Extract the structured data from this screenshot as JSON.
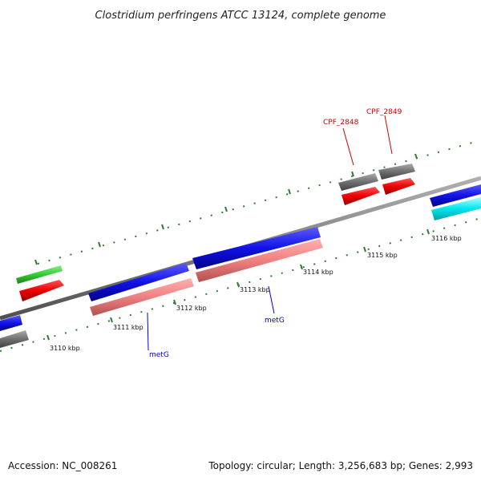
{
  "title": "Clostridium perfringens ATCC 13124, complete genome",
  "footer": {
    "accession": "Accession: NC_008261",
    "summary": "Topology: circular; Length: 3,256,683 bp; Genes: 2,993"
  },
  "kbp_labels": [
    "3110 kbp",
    "3111 kbp",
    "3112 kbp",
    "3113 kbp",
    "3114 kbp",
    "3115 kbp",
    "3116 kbp"
  ],
  "gene_labels": [
    {
      "text": "CPF_2848",
      "color": "#cc0000"
    },
    {
      "text": "CPF_2849",
      "color": "#cc0000"
    },
    {
      "text": "metG",
      "color": "#0000cc"
    },
    {
      "text": "metG",
      "color": "#0000cc"
    }
  ],
  "colors": {
    "backbone": "#808080",
    "tick": "#2e7d32",
    "blue": "#1010e0",
    "red": "#ee0000",
    "pink": "#f08080",
    "gray": "#707070",
    "green": "#33cc33",
    "cyan": "#00e5ee"
  }
}
